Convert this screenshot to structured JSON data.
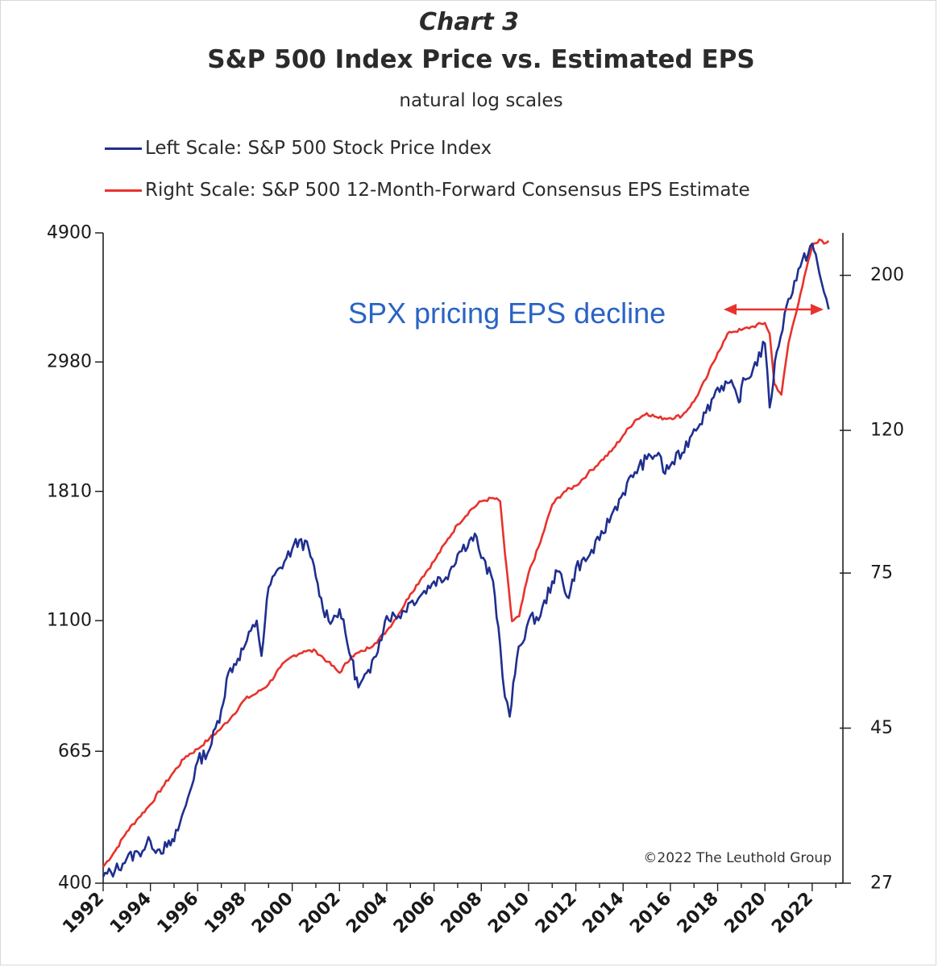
{
  "chart_data": {
    "type": "line",
    "title": "S&P 500 Index Price vs. Estimated EPS",
    "chart_label": "Chart 3",
    "subtitle": "natural log scales",
    "legend": [
      {
        "label": "Left Scale: S&P 500 Stock Price Index",
        "color": "#1f2f8f"
      },
      {
        "label": "Right Scale: S&P 500 12-Month-Forward Consensus EPS Estimate",
        "color": "#e8322c"
      }
    ],
    "y_left": {
      "scale": "log",
      "range": [
        400,
        4900
      ],
      "ticks": [
        400,
        665,
        1100,
        1810,
        2980,
        4900
      ]
    },
    "y_right": {
      "scale": "log",
      "range": [
        27,
        230
      ],
      "ticks": [
        27,
        45,
        75,
        120,
        200
      ]
    },
    "x_range": [
      1992,
      2023.3
    ],
    "x_ticks": [
      "1992",
      "1994",
      "1996",
      "1998",
      "2000",
      "2002",
      "2004",
      "2006",
      "2008",
      "2010",
      "2012",
      "2014",
      "2016",
      "2018",
      "2020",
      "2022"
    ],
    "series": [
      {
        "name": "S&P 500 Stock Price Index",
        "axis": "left",
        "color": "#1f2f8f",
        "x": [
          1992.0,
          1992.5,
          1993.0,
          1993.5,
          1994.0,
          1994.3,
          1994.7,
          1995.0,
          1995.5,
          1996.0,
          1996.5,
          1997.0,
          1997.3,
          1997.7,
          1998.0,
          1998.5,
          1998.7,
          1999.0,
          1999.5,
          2000.0,
          2000.3,
          2000.7,
          2001.0,
          2001.3,
          2001.7,
          2002.0,
          2002.5,
          2002.8,
          2003.0,
          2003.3,
          2003.7,
          2004.0,
          2004.5,
          2005.0,
          2005.5,
          2006.0,
          2006.5,
          2007.0,
          2007.5,
          2007.8,
          2008.0,
          2008.5,
          2008.8,
          2009.0,
          2009.2,
          2009.5,
          2010.0,
          2010.5,
          2011.0,
          2011.3,
          2011.7,
          2012.0,
          2012.5,
          2013.0,
          2013.5,
          2014.0,
          2014.5,
          2015.0,
          2015.5,
          2015.7,
          2016.0,
          2016.5,
          2017.0,
          2017.5,
          2018.0,
          2018.5,
          2018.9,
          2019.0,
          2019.5,
          2020.0,
          2020.2,
          2020.5,
          2021.0,
          2021.5,
          2022.0,
          2022.3,
          2022.5,
          2022.7
        ],
        "values": [
          410,
          420,
          440,
          450,
          470,
          455,
          460,
          470,
          540,
          640,
          670,
          780,
          900,
          950,
          1000,
          1100,
          960,
          1250,
          1350,
          1450,
          1500,
          1450,
          1300,
          1150,
          1100,
          1150,
          950,
          850,
          880,
          900,
          1020,
          1120,
          1120,
          1180,
          1220,
          1280,
          1300,
          1420,
          1500,
          1520,
          1400,
          1280,
          1000,
          820,
          760,
          950,
          1100,
          1120,
          1280,
          1330,
          1200,
          1350,
          1400,
          1500,
          1650,
          1800,
          1950,
          2050,
          2100,
          1950,
          2000,
          2100,
          2300,
          2450,
          2700,
          2750,
          2550,
          2700,
          2900,
          3200,
          2500,
          3100,
          3800,
          4300,
          4700,
          4200,
          3900,
          3650
        ]
      },
      {
        "name": "S&P 500 12-Month-Forward Consensus EPS Estimate",
        "axis": "right",
        "color": "#e8322c",
        "x": [
          1992.0,
          1992.5,
          1993.0,
          1993.5,
          1994.0,
          1994.5,
          1995.0,
          1995.5,
          1996.0,
          1996.5,
          1997.0,
          1997.5,
          1998.0,
          1998.5,
          1999.0,
          1999.5,
          2000.0,
          2000.5,
          2001.0,
          2001.5,
          2002.0,
          2002.5,
          2003.0,
          2003.5,
          2004.0,
          2004.5,
          2005.0,
          2005.5,
          2006.0,
          2006.5,
          2007.0,
          2007.5,
          2008.0,
          2008.5,
          2008.8,
          2009.0,
          2009.3,
          2009.6,
          2010.0,
          2010.5,
          2011.0,
          2011.5,
          2012.0,
          2012.5,
          2013.0,
          2013.5,
          2014.0,
          2014.5,
          2015.0,
          2015.5,
          2016.0,
          2016.5,
          2017.0,
          2017.5,
          2018.0,
          2018.5,
          2019.0,
          2019.5,
          2020.0,
          2020.2,
          2020.4,
          2020.7,
          2021.0,
          2021.5,
          2022.0,
          2022.3,
          2022.5,
          2022.7
        ],
        "values": [
          28.5,
          30,
          32,
          33.5,
          35,
          37,
          39,
          41,
          42,
          43.5,
          45,
          47,
          49.5,
          50.5,
          52,
          55,
          57,
          58,
          58,
          56,
          54,
          57,
          58,
          59.5,
          62,
          65.5,
          70,
          74,
          78,
          83,
          88,
          92,
          95,
          96,
          95,
          80,
          64,
          65,
          75,
          83,
          94,
          98,
          100,
          104,
          108,
          112,
          118,
          124,
          127,
          125,
          125,
          126,
          132,
          142,
          155,
          166,
          167,
          169,
          171,
          165,
          140,
          135,
          160,
          188,
          220,
          225,
          222,
          224
        ]
      }
    ],
    "annotation": "SPX pricing EPS decline",
    "source": "©2022 The Leuthold Group"
  }
}
